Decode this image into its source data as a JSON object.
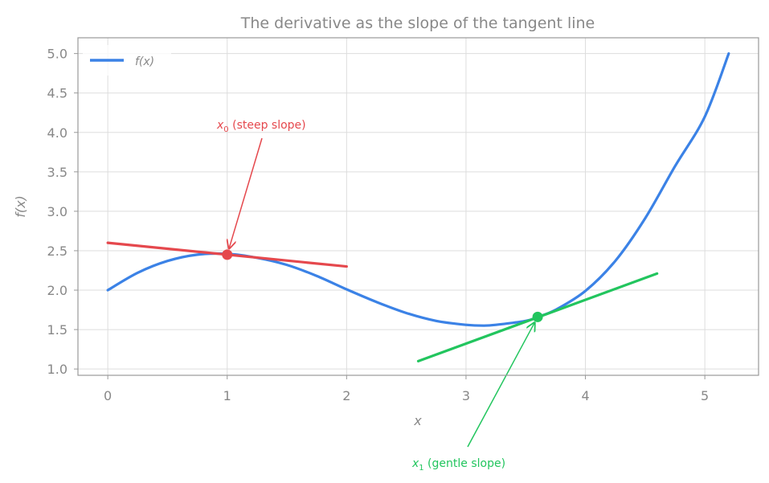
{
  "chart_data": {
    "type": "line",
    "title": "The derivative as the slope of the tangent line",
    "xlabel": "x",
    "ylabel": "f(x)",
    "xlim": [
      -0.25,
      5.45
    ],
    "ylim": [
      0.92,
      5.2
    ],
    "xticks": [
      0,
      1,
      2,
      3,
      4,
      5
    ],
    "yticks": [
      1.0,
      1.5,
      2.0,
      2.5,
      3.0,
      3.5,
      4.0,
      4.5,
      5.0
    ],
    "grid": true,
    "legend": {
      "placement": "upper-left",
      "entries": [
        "f(x)"
      ]
    },
    "series": [
      {
        "name": "f(x)",
        "color": "#3b82e6",
        "x": [
          0,
          0.25,
          0.5,
          0.75,
          1.0,
          1.25,
          1.5,
          1.75,
          2.0,
          2.25,
          2.5,
          2.75,
          3.0,
          3.15,
          3.25,
          3.5,
          3.6,
          3.75,
          4.0,
          4.25,
          4.5,
          4.75,
          5.0,
          5.2
        ],
        "y": [
          2.0,
          2.22,
          2.37,
          2.45,
          2.46,
          2.41,
          2.32,
          2.18,
          2.01,
          1.85,
          1.71,
          1.61,
          1.56,
          1.55,
          1.56,
          1.61,
          1.66,
          1.75,
          1.99,
          2.37,
          2.91,
          3.57,
          4.2,
          5.0
        ]
      },
      {
        "name": "tangent at x0",
        "color": "#e5484d",
        "x": [
          0,
          2.0
        ],
        "y": [
          2.6,
          2.3
        ]
      },
      {
        "name": "tangent at x1",
        "color": "#22c55e",
        "x": [
          2.6,
          4.6
        ],
        "y": [
          1.1,
          2.21
        ]
      }
    ],
    "points": [
      {
        "x": 1.0,
        "y": 2.45,
        "color": "#e5484d"
      },
      {
        "x": 3.6,
        "y": 1.66,
        "color": "#22c55e"
      }
    ],
    "annotations": [
      {
        "symbol": "x",
        "subscript": "0",
        "text": " (steep slope)",
        "color": "#e5484d",
        "target": [
          1.0,
          2.45
        ],
        "text_at": [
          1.3,
          4.0
        ]
      },
      {
        "symbol": "x",
        "subscript": "1",
        "text": " (gentle slope)",
        "color": "#22c55e",
        "target": [
          3.6,
          1.66
        ],
        "text_at": [
          3.0,
          0.0
        ]
      }
    ]
  }
}
